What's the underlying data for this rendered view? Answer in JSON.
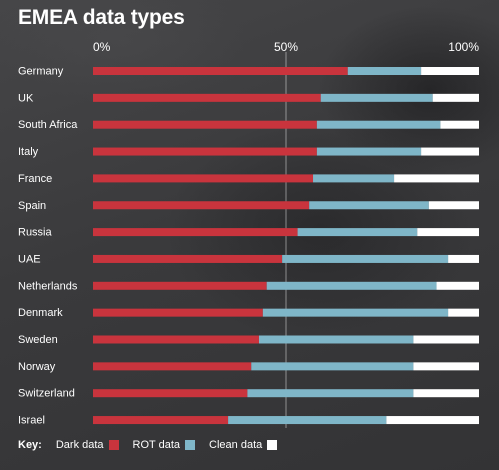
{
  "title": "EMEA data types",
  "key": {
    "title": "Key:",
    "items": [
      {
        "label": "Dark data",
        "color": "#c9343d"
      },
      {
        "label": "ROT data",
        "color": "#7fb6c8"
      },
      {
        "label": "Clean data",
        "color": "#ffffff"
      }
    ]
  },
  "chart_data": {
    "type": "bar",
    "orientation": "horizontal",
    "stacked": true,
    "categories": [
      "Germany",
      "UK",
      "South Africa",
      "Italy",
      "France",
      "Spain",
      "Russia",
      "UAE",
      "Netherlands",
      "Denmark",
      "Sweden",
      "Norway",
      "Switzerland",
      "Israel"
    ],
    "series": [
      {
        "name": "Dark data",
        "color": "#c9343d",
        "values": [
          66,
          59,
          58,
          58,
          57,
          56,
          53,
          49,
          45,
          44,
          43,
          41,
          40,
          35
        ]
      },
      {
        "name": "ROT data",
        "color": "#7fb6c8",
        "values": [
          19,
          29,
          32,
          27,
          21,
          31,
          31,
          43,
          44,
          48,
          40,
          42,
          43,
          41
        ]
      },
      {
        "name": "Clean data",
        "color": "#ffffff",
        "values": [
          15,
          12,
          10,
          15,
          22,
          13,
          16,
          8,
          11,
          8,
          17,
          17,
          17,
          24
        ]
      }
    ],
    "x_ticks": [
      "0%",
      "50%",
      "100%"
    ],
    "xlim": [
      0,
      100
    ],
    "xlabel": "",
    "ylabel": "",
    "gridline_at": 50,
    "legend_position": "bottom-left"
  }
}
